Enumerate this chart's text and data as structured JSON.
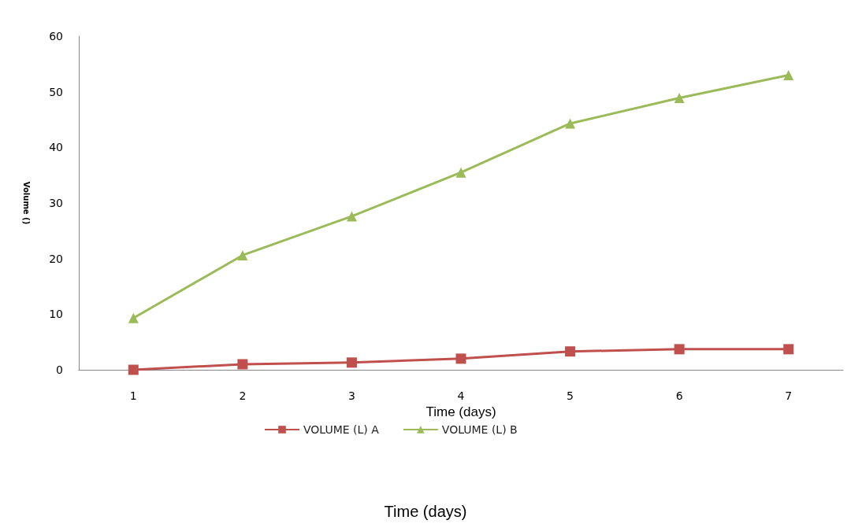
{
  "chart_data": {
    "type": "line",
    "xlabel": "Time (days)",
    "ylabel": "Volume ()",
    "categories": [
      "1",
      "2",
      "3",
      "4",
      "5",
      "6",
      "7"
    ],
    "series": [
      {
        "name": "VOLUME (L) A",
        "color": "#c0504d",
        "marker": "square",
        "values": [
          0,
          1.0,
          1.3,
          2.0,
          3.3,
          3.7,
          3.7
        ]
      },
      {
        "name": "VOLUME (L) B",
        "color": "#9bbb59",
        "marker": "triangle",
        "values": [
          9.3,
          20.6,
          27.6,
          35.5,
          44.3,
          48.9,
          53.0
        ]
      }
    ],
    "ylim": [
      0,
      60
    ],
    "yticks": [
      0,
      10,
      20,
      30,
      40,
      50,
      60
    ],
    "grid": false,
    "legend": "bottom",
    "annotations": [
      "Time (days)"
    ]
  }
}
